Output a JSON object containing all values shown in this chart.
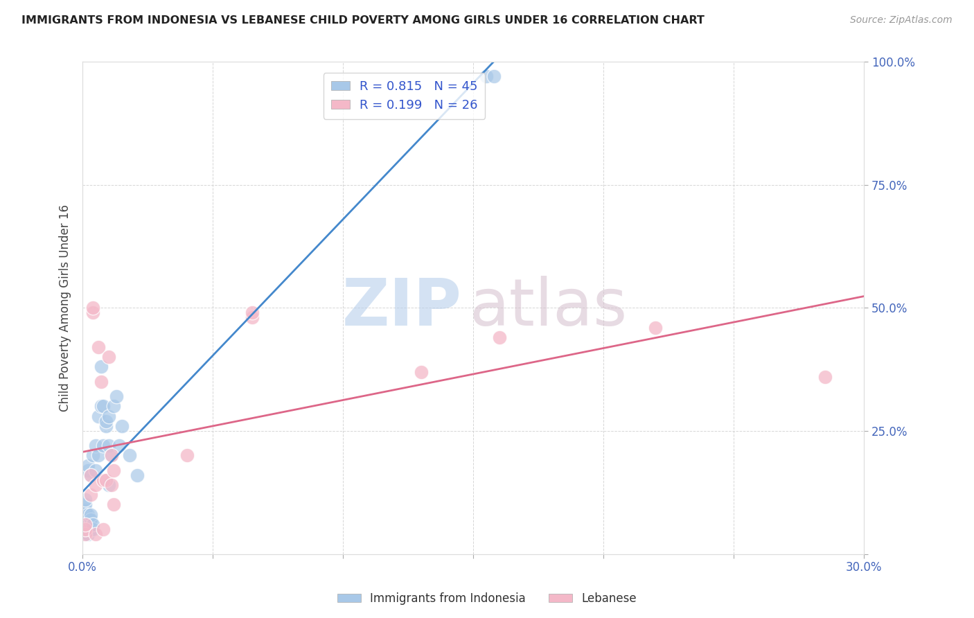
{
  "title": "IMMIGRANTS FROM INDONESIA VS LEBANESE CHILD POVERTY AMONG GIRLS UNDER 16 CORRELATION CHART",
  "source": "Source: ZipAtlas.com",
  "ylabel": "Child Poverty Among Girls Under 16",
  "xlim": [
    0.0,
    0.3
  ],
  "ylim": [
    0.0,
    1.0
  ],
  "indonesia_color": "#a8c8e8",
  "lebanese_color": "#f4b8c8",
  "indonesia_line_color": "#4488cc",
  "lebanese_line_color": "#dd6688",
  "indonesia_R": 0.815,
  "indonesia_N": 45,
  "lebanese_R": 0.199,
  "lebanese_N": 26,
  "indonesia_x": [
    0.001,
    0.001,
    0.001,
    0.001,
    0.001,
    0.001,
    0.001,
    0.001,
    0.002,
    0.002,
    0.002,
    0.002,
    0.002,
    0.002,
    0.002,
    0.003,
    0.003,
    0.003,
    0.003,
    0.003,
    0.004,
    0.004,
    0.004,
    0.005,
    0.005,
    0.006,
    0.006,
    0.007,
    0.007,
    0.008,
    0.008,
    0.009,
    0.009,
    0.01,
    0.01,
    0.01,
    0.011,
    0.012,
    0.013,
    0.014,
    0.015,
    0.018,
    0.021,
    0.155,
    0.158
  ],
  "indonesia_y": [
    0.04,
    0.05,
    0.06,
    0.07,
    0.08,
    0.09,
    0.1,
    0.11,
    0.04,
    0.05,
    0.06,
    0.07,
    0.08,
    0.17,
    0.18,
    0.05,
    0.06,
    0.07,
    0.08,
    0.16,
    0.05,
    0.06,
    0.2,
    0.17,
    0.22,
    0.2,
    0.28,
    0.3,
    0.38,
    0.22,
    0.3,
    0.26,
    0.27,
    0.14,
    0.22,
    0.28,
    0.2,
    0.3,
    0.32,
    0.22,
    0.26,
    0.2,
    0.16,
    0.97,
    0.97
  ],
  "lebanese_x": [
    0.001,
    0.001,
    0.001,
    0.003,
    0.003,
    0.004,
    0.004,
    0.005,
    0.005,
    0.006,
    0.007,
    0.008,
    0.008,
    0.009,
    0.01,
    0.011,
    0.011,
    0.012,
    0.012,
    0.04,
    0.065,
    0.065,
    0.13,
    0.16,
    0.22,
    0.285
  ],
  "lebanese_y": [
    0.04,
    0.05,
    0.06,
    0.12,
    0.16,
    0.49,
    0.5,
    0.04,
    0.14,
    0.42,
    0.35,
    0.05,
    0.15,
    0.15,
    0.4,
    0.14,
    0.2,
    0.1,
    0.17,
    0.2,
    0.48,
    0.49,
    0.37,
    0.44,
    0.46,
    0.36
  ]
}
